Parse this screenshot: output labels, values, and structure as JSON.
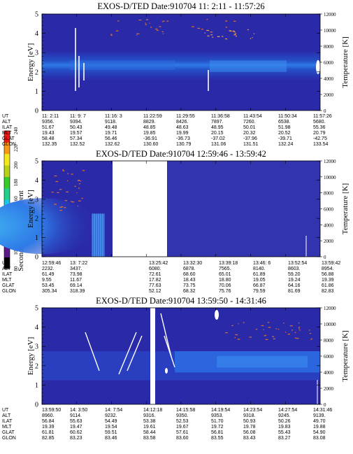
{
  "colors": {
    "background_band": "#2a2aa8",
    "bright_band": "#2f7ae8",
    "cyan": "#3fb2f0",
    "dark_edge": "#222299",
    "speckle_orange": "#e07030",
    "white": "#ffffff"
  },
  "colorbar": {
    "label": "Second Harmonic Current",
    "ticks": [
      "80",
      "100",
      "120",
      "140",
      "160",
      "180",
      "200",
      "220",
      "240"
    ],
    "colors": [
      "#000000",
      "#5a1a88",
      "#3a2ab0",
      "#2a3ad0",
      "#1d7ff0",
      "#19c8e8",
      "#1fd28c",
      "#38cc2a",
      "#b8d018",
      "#f4e81a",
      "#f49a14",
      "#ea1c16"
    ]
  },
  "chart_data": [
    {
      "type": "heatmap",
      "title": "EXOS-D/TED   Date:910704   11: 2:11 - 11:57:26",
      "ylabel": "Energy [eV]",
      "y2label": "Temperature [K]",
      "ylim": [
        0,
        5
      ],
      "y2lim": [
        0,
        12000
      ],
      "yticks": [
        "0",
        "1",
        "2",
        "3",
        "4",
        "5"
      ],
      "y2ticks": [
        "0",
        "2000",
        "4000",
        "6000",
        "8000",
        "10000",
        "12000"
      ],
      "rows": [
        {
          "label": "UT",
          "values": [
            "11: 2:11",
            "11: 9: 7",
            "11:16: 3",
            "11:22:59",
            "11:29:55",
            "11:36:58",
            "11:43:54",
            "11:50:34",
            "11:57:26"
          ]
        },
        {
          "label": "ALT",
          "values": [
            "9356.",
            "9394.",
            "9118.",
            "8829.",
            "8426.",
            "7897.",
            "7260.",
            "6538.",
            "5680."
          ]
        },
        {
          "label": "ILAT",
          "values": [
            "51.67",
            "50.43",
            "49.48",
            "48.85",
            "48.63",
            "48.95",
            "50.01",
            "51.98",
            "55.36"
          ]
        },
        {
          "label": "MLT",
          "values": [
            "19.43",
            "19.57",
            "19.71",
            "19.85",
            "19.99",
            "20.15",
            "20.32",
            "20.52",
            "20.79"
          ]
        },
        {
          "label": "GLAT",
          "values": [
            "58.48",
            "57.34",
            "56.46",
            "-36.91",
            "-36.73",
            "-37.02",
            "-37.96",
            "-39.71",
            "-42.75"
          ]
        },
        {
          "label": "GLON",
          "values": [
            "132.35",
            "132.52",
            "132.62",
            "130.60",
            "130.79",
            "131.06",
            "131.51",
            "132.24",
            "133.54"
          ]
        }
      ]
    },
    {
      "type": "heatmap",
      "title": "EXOS-D/TED   Date:910704   12:59:46 - 13:59:42",
      "ylabel": "Energy [eV]",
      "y2label": "Temperature [K]",
      "ylim": [
        0,
        5
      ],
      "y2lim": [
        0,
        12000
      ],
      "yticks": [
        "0",
        "1",
        "2",
        "3",
        "4",
        "5"
      ],
      "y2ticks": [
        "0",
        "2000",
        "4000",
        "6000",
        "8000",
        "10000",
        "12000"
      ],
      "data_gap": [
        "13: 7:22",
        "13:25:42"
      ],
      "rows": [
        {
          "label": "UT",
          "values": [
            "12:59:46",
            "13: 7:22",
            "",
            "13:25:42",
            "13:32:30",
            "13:39:18",
            "13:46: 6",
            "13:52:54",
            "13:59:42"
          ]
        },
        {
          "label": "ALT",
          "values": [
            "2232.",
            "3437.",
            "",
            "6080.",
            "6878.",
            "7565.",
            "8140.",
            "8603.",
            "8954."
          ]
        },
        {
          "label": "ILAT",
          "values": [
            "61.49",
            "73.98",
            "",
            "72.61",
            "68.60",
            "65.01",
            "61.89",
            "59.20",
            "56.88"
          ]
        },
        {
          "label": "MLT",
          "values": [
            "9.55",
            "11.67",
            "",
            "17.82",
            "18.43",
            "18.80",
            "19.05",
            "19.24",
            "19.39"
          ]
        },
        {
          "label": "GLAT",
          "values": [
            "53.45",
            "69.14",
            "",
            "77.63",
            "73.75",
            "70.06",
            "66.87",
            "64.16",
            "61.86"
          ]
        },
        {
          "label": "GLON",
          "values": [
            "305.34",
            "318.39",
            "",
            "52.12",
            "68.32",
            "75.76",
            "79.59",
            "81.69",
            "82.83"
          ]
        }
      ]
    },
    {
      "type": "heatmap",
      "title": "EXOS-D/TED   Date:910704   13:59:50 - 14:31:46",
      "ylabel": "Energy [eV]",
      "y2label": "Temperature [K]",
      "ylim": [
        0,
        5
      ],
      "y2lim": [
        0,
        12000
      ],
      "yticks": [
        "0",
        "1",
        "2",
        "3",
        "4",
        "5"
      ],
      "y2ticks": [
        "0",
        "2000",
        "4000",
        "6000",
        "8000",
        "10000",
        "12000"
      ],
      "rows": [
        {
          "label": "UT",
          "values": [
            "13:59:50",
            "14: 3:50",
            "14: 7:54",
            "14:12:18",
            "14:15:58",
            "14:19:54",
            "14:23:54",
            "14:27:54",
            "14:31:46"
          ]
        },
        {
          "label": "ALT",
          "values": [
            "8960.",
            "9114.",
            "9232.",
            "9316.",
            "9350.",
            "9353.",
            "9318.",
            "9245.",
            "9139."
          ]
        },
        {
          "label": "ILAT",
          "values": [
            "56.84",
            "55.63",
            "54.49",
            "53.38",
            "52.53",
            "51.70",
            "50.93",
            "50.26",
            "49.70"
          ]
        },
        {
          "label": "MLT",
          "values": [
            "19.39",
            "19.47",
            "19.54",
            "19.61",
            "19.67",
            "19.72",
            "19.78",
            "19.83",
            "19.88"
          ]
        },
        {
          "label": "GLAT",
          "values": [
            "61.81",
            "60.62",
            "59.51",
            "58.44",
            "57.61",
            "56.81",
            "56.08",
            "55.43",
            "54.90"
          ]
        },
        {
          "label": "GLON",
          "values": [
            "82.85",
            "83.23",
            "83.46",
            "83.58",
            "83.60",
            "83.55",
            "83.43",
            "83.27",
            "83.08"
          ]
        }
      ]
    }
  ]
}
